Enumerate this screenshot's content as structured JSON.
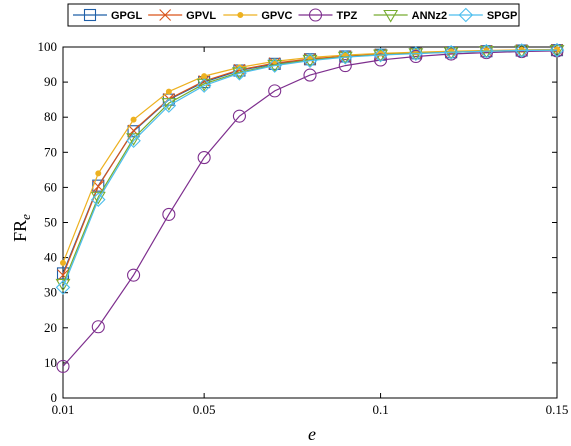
{
  "chart_data": {
    "type": "line",
    "xlabel": "e",
    "ylabel": "FR",
    "ylabel_sub": "e",
    "xlim": [
      0.01,
      0.15
    ],
    "ylim": [
      0,
      100
    ],
    "xticks": [
      0.01,
      0.05,
      0.1,
      0.15
    ],
    "xtick_labels": [
      "0.01",
      "0.05",
      "0.1",
      "0.15"
    ],
    "yticks": [
      0,
      10,
      20,
      30,
      40,
      50,
      60,
      70,
      80,
      90,
      100
    ],
    "ytick_labels": [
      "0",
      "10",
      "20",
      "30",
      "40",
      "50",
      "60",
      "70",
      "80",
      "90",
      "100"
    ],
    "grid": false,
    "legend_position": "top",
    "x": [
      0.01,
      0.02,
      0.03,
      0.04,
      0.05,
      0.06,
      0.07,
      0.08,
      0.09,
      0.1,
      0.11,
      0.12,
      0.13,
      0.14,
      0.15
    ],
    "series": [
      {
        "name": "GPGL",
        "color": "#1f5fa8",
        "marker": "square",
        "values": [
          35.5,
          60.5,
          76.0,
          85.0,
          90.0,
          93.3,
          95.2,
          96.5,
          97.3,
          97.8,
          98.2,
          98.5,
          98.8,
          99.0,
          99.1
        ]
      },
      {
        "name": "GPVL",
        "color": "#d9541a",
        "marker": "x",
        "values": [
          35.0,
          60.3,
          76.2,
          85.2,
          90.3,
          93.5,
          95.4,
          96.6,
          97.4,
          97.9,
          98.3,
          98.6,
          98.9,
          99.1,
          99.2
        ]
      },
      {
        "name": "GPVC",
        "color": "#edb120",
        "marker": "dot",
        "values": [
          38.5,
          64.0,
          79.3,
          87.3,
          91.7,
          94.2,
          95.9,
          97.0,
          97.7,
          98.2,
          98.5,
          98.8,
          99.0,
          99.2,
          99.3
        ]
      },
      {
        "name": "TPZ",
        "color": "#7e2f8e",
        "marker": "circle",
        "values": [
          9.0,
          20.3,
          35.0,
          52.3,
          68.5,
          80.3,
          87.5,
          92.0,
          94.7,
          96.3,
          97.3,
          98.0,
          98.4,
          98.7,
          98.9
        ]
      },
      {
        "name": "ANNz2",
        "color": "#77ac30",
        "marker": "triangle-down",
        "values": [
          32.5,
          57.3,
          74.0,
          84.0,
          89.5,
          92.8,
          94.9,
          96.3,
          97.2,
          97.8,
          98.2,
          98.5,
          98.8,
          99.0,
          99.1
        ]
      },
      {
        "name": "SPGP",
        "color": "#4dbeee",
        "marker": "diamond",
        "values": [
          31.5,
          56.5,
          73.3,
          83.3,
          89.0,
          92.5,
          94.7,
          96.1,
          97.1,
          97.7,
          98.1,
          98.5,
          98.8,
          99.0,
          99.1
        ]
      }
    ]
  }
}
